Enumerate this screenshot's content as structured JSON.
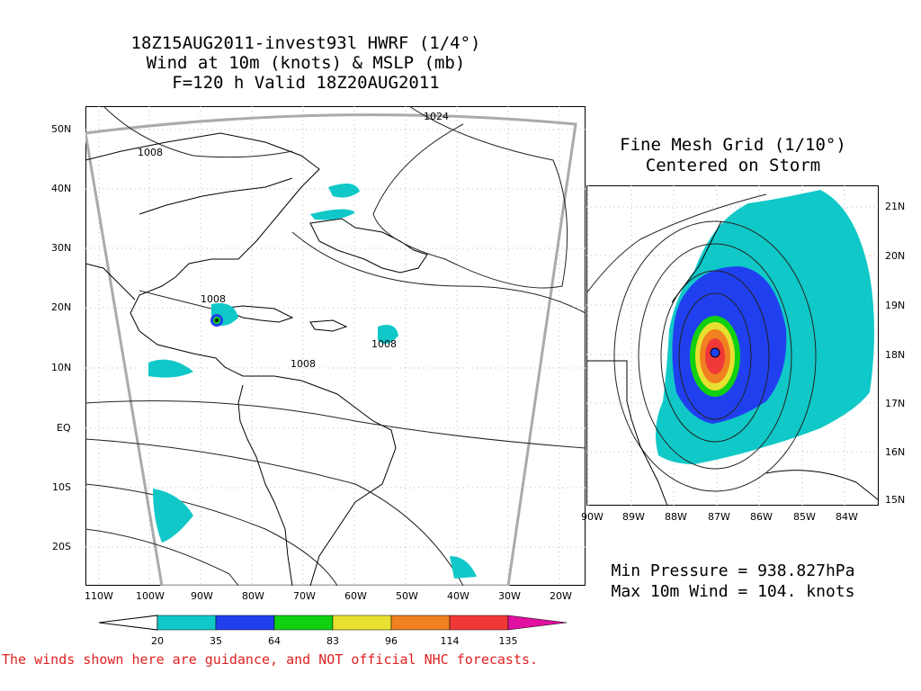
{
  "title": {
    "line1": "18Z15AUG2011-invest93l HWRF (1/4°)",
    "line2": "Wind at 10m (knots) & MSLP (mb)",
    "line3": "F=120 h Valid 18Z20AUG2011"
  },
  "main_map": {
    "lat_labels": [
      "50N",
      "40N",
      "30N",
      "20N",
      "10N",
      "EQ",
      "10S",
      "20S"
    ],
    "lon_labels": [
      "110W",
      "100W",
      "90W",
      "80W",
      "70W",
      "60W",
      "50W",
      "40W",
      "30W",
      "20W"
    ],
    "isobar_labels": [
      "1024",
      "1008",
      "1008",
      "1008",
      "1008"
    ]
  },
  "fine_mesh": {
    "title_line1": "Fine Mesh Grid (1/10°)",
    "title_line2": "Centered on Storm",
    "lat_labels": [
      "21N",
      "20N",
      "19N",
      "18N",
      "17N",
      "16N",
      "15N"
    ],
    "lon_labels": [
      "90W",
      "89W",
      "88W",
      "87W",
      "86W",
      "85W",
      "84W"
    ]
  },
  "stats": {
    "min_pressure": "Min Pressure = 938.827hPa",
    "max_wind": "Max 10m Wind = 104. knots"
  },
  "colorbar": {
    "bins": [
      {
        "label": "20",
        "color": "#10c8c8"
      },
      {
        "label": "35",
        "color": "#2040f0"
      },
      {
        "label": "64",
        "color": "#10d010"
      },
      {
        "label": "83",
        "color": "#e8e030"
      },
      {
        "label": "96",
        "color": "#f08020"
      },
      {
        "label": "114",
        "color": "#f03838"
      },
      {
        "label": "135",
        "color": "#e010a0"
      }
    ]
  },
  "disclaimer": "The winds shown here are guidance, and NOT official NHC forecasts."
}
